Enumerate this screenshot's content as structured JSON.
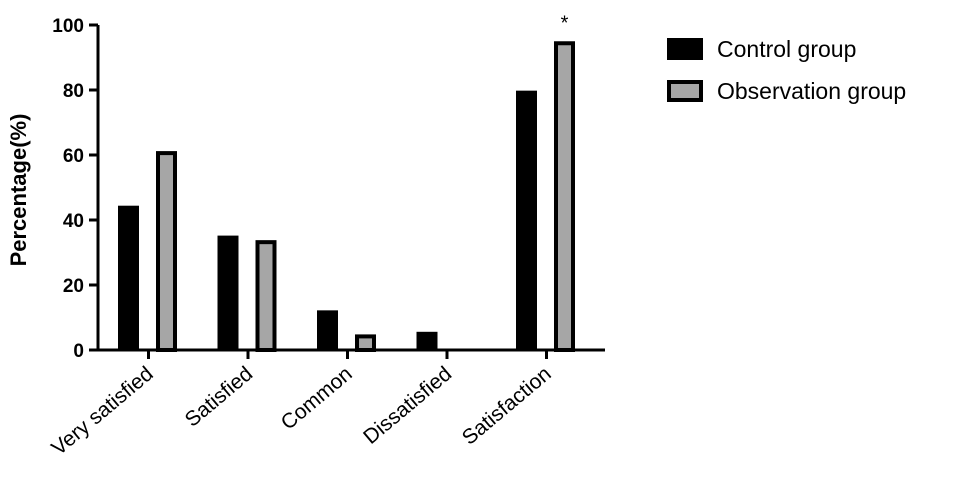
{
  "chart_data": {
    "type": "bar",
    "categories": [
      "Very satisfied",
      "Satisfied",
      "Common",
      "Dissatisfied",
      "Satisfaction"
    ],
    "series": [
      {
        "name": "Control group",
        "values": [
          44.4,
          35.2,
          12.2,
          5.6,
          79.8
        ],
        "color": "#000000"
      },
      {
        "name": "Observation group",
        "values": [
          61.2,
          33.8,
          4.8,
          0,
          95.0
        ],
        "color": "#a6a6a6"
      }
    ],
    "ylabel": "Percentage(%)",
    "xlabel": "",
    "ylim": [
      0,
      100
    ],
    "yticks": [
      "0",
      "20",
      "40",
      "60",
      "80",
      "100"
    ],
    "annotations": [
      {
        "category": "Satisfaction",
        "series": "Observation group",
        "text": "*"
      }
    ],
    "legend": "top-right",
    "grid": false
  }
}
